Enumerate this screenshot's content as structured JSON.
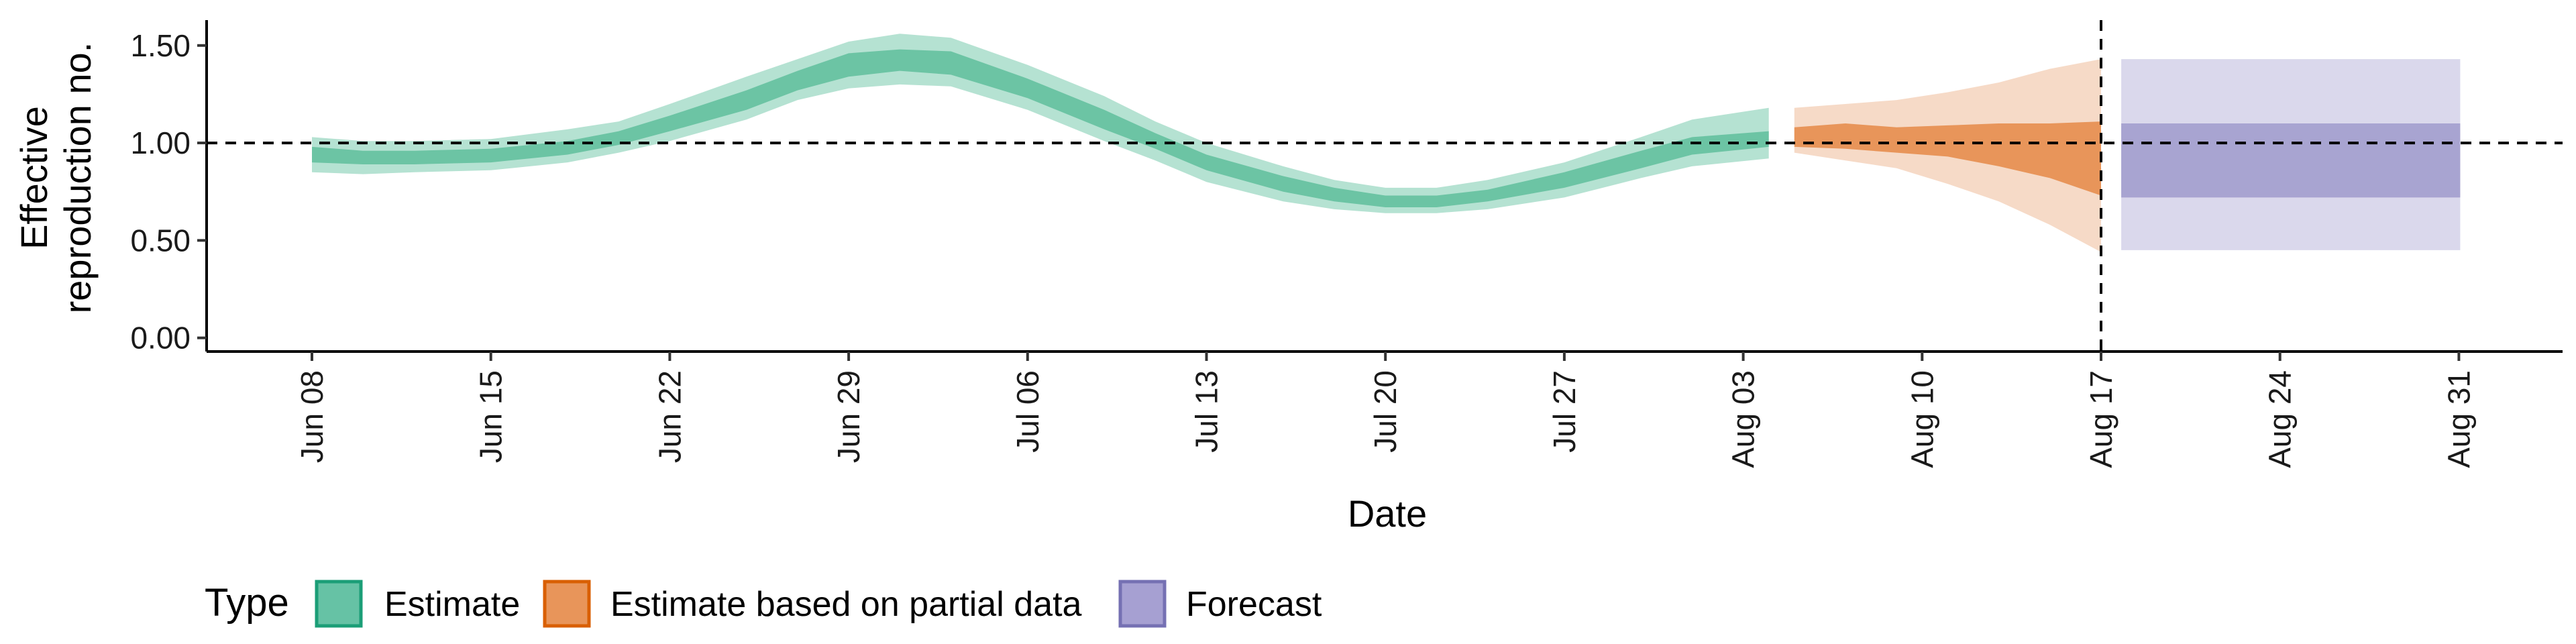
{
  "chart_data": {
    "type": "area",
    "xlabel": "Date",
    "ylabel_lines": [
      "Effective",
      "reproduction no."
    ],
    "y_ticks": [
      "0.00",
      "0.50",
      "1.00",
      "1.50"
    ],
    "ylim": [
      -0.07,
      1.63
    ],
    "x_ticks": [
      "Jun 08",
      "Jun 15",
      "Jun 22",
      "Jun 29",
      "Jul 06",
      "Jul 13",
      "Jul 20",
      "Jul 27",
      "Aug 03",
      "Aug 10",
      "Aug 17",
      "Aug 24",
      "Aug 31"
    ],
    "reference_hline": 1.0,
    "reference_vline_date": "Aug 17",
    "legend": {
      "title": "Type",
      "entries": [
        {
          "label": "Estimate",
          "fill": "#66c2a5",
          "stroke": "#1b9e77"
        },
        {
          "label": "Estimate based on partial data",
          "fill": "#e8955a",
          "stroke": "#d95f02"
        },
        {
          "label": "Forecast",
          "fill": "#a6a0d2",
          "stroke": "#7570b3"
        }
      ]
    },
    "series": [
      {
        "name": "Estimate",
        "color_inner": "#6cc4a4",
        "color_outer": "#b5e2d2",
        "dates": [
          "Jun 08",
          "Jun 10",
          "Jun 12",
          "Jun 15",
          "Jun 18",
          "Jun 20",
          "Jun 22",
          "Jun 25",
          "Jun 27",
          "Jun 29",
          "Jul 01",
          "Jul 03",
          "Jul 06",
          "Jul 09",
          "Jul 11",
          "Jul 13",
          "Jul 16",
          "Jul 18",
          "Jul 20",
          "Jul 22",
          "Jul 24",
          "Jul 27",
          "Jul 30",
          "Aug 01",
          "Aug 04"
        ],
        "median": [
          0.94,
          0.92,
          0.92,
          0.93,
          0.97,
          1.02,
          1.1,
          1.22,
          1.32,
          1.4,
          1.43,
          1.41,
          1.28,
          1.12,
          1.01,
          0.9,
          0.79,
          0.73,
          0.7,
          0.7,
          0.73,
          0.81,
          0.91,
          0.98,
          1.02
        ],
        "lower_50": [
          0.9,
          0.89,
          0.89,
          0.9,
          0.94,
          0.99,
          1.06,
          1.17,
          1.27,
          1.34,
          1.37,
          1.35,
          1.23,
          1.07,
          0.97,
          0.86,
          0.75,
          0.7,
          0.67,
          0.67,
          0.7,
          0.77,
          0.87,
          0.94,
          0.98
        ],
        "upper_50": [
          0.98,
          0.96,
          0.96,
          0.97,
          1.01,
          1.06,
          1.14,
          1.27,
          1.37,
          1.46,
          1.48,
          1.47,
          1.33,
          1.17,
          1.05,
          0.94,
          0.83,
          0.77,
          0.73,
          0.73,
          0.76,
          0.85,
          0.96,
          1.03,
          1.06
        ],
        "lower_90": [
          0.85,
          0.84,
          0.85,
          0.86,
          0.9,
          0.95,
          1.01,
          1.12,
          1.22,
          1.28,
          1.3,
          1.29,
          1.17,
          1.01,
          0.91,
          0.8,
          0.7,
          0.66,
          0.64,
          0.64,
          0.66,
          0.72,
          0.82,
          0.88,
          0.92
        ],
        "upper_90": [
          1.03,
          1.01,
          1.01,
          1.02,
          1.07,
          1.11,
          1.2,
          1.34,
          1.43,
          1.52,
          1.56,
          1.54,
          1.4,
          1.24,
          1.11,
          1.0,
          0.88,
          0.81,
          0.77,
          0.77,
          0.81,
          0.9,
          1.03,
          1.12,
          1.18
        ]
      },
      {
        "name": "Estimate based on partial data",
        "color_inner": "#e8955a",
        "color_outer": "#f4d3bd",
        "dates": [
          "Aug 05",
          "Aug 07",
          "Aug 09",
          "Aug 11",
          "Aug 13",
          "Aug 15",
          "Aug 17"
        ],
        "median": [
          1.02,
          1.02,
          1.01,
          1.01,
          1.0,
          0.98,
          0.95
        ],
        "lower_50": [
          0.98,
          0.97,
          0.95,
          0.93,
          0.88,
          0.82,
          0.73
        ],
        "upper_50": [
          1.08,
          1.1,
          1.08,
          1.09,
          1.1,
          1.1,
          1.11
        ],
        "lower_90": [
          0.95,
          0.91,
          0.87,
          0.79,
          0.7,
          0.58,
          0.44
        ],
        "upper_90": [
          1.18,
          1.2,
          1.22,
          1.26,
          1.31,
          1.38,
          1.43
        ]
      },
      {
        "name": "Forecast",
        "color_inner": "#a8a4d1",
        "color_outer": "#dad8ec",
        "dates": [
          "Aug 18",
          "Aug 31"
        ],
        "median": [
          0.92,
          0.92
        ],
        "lower_50": [
          0.72,
          0.72
        ],
        "upper_50": [
          1.1,
          1.1
        ],
        "lower_90": [
          0.45,
          0.45
        ],
        "upper_90": [
          1.43,
          1.43
        ]
      }
    ]
  }
}
